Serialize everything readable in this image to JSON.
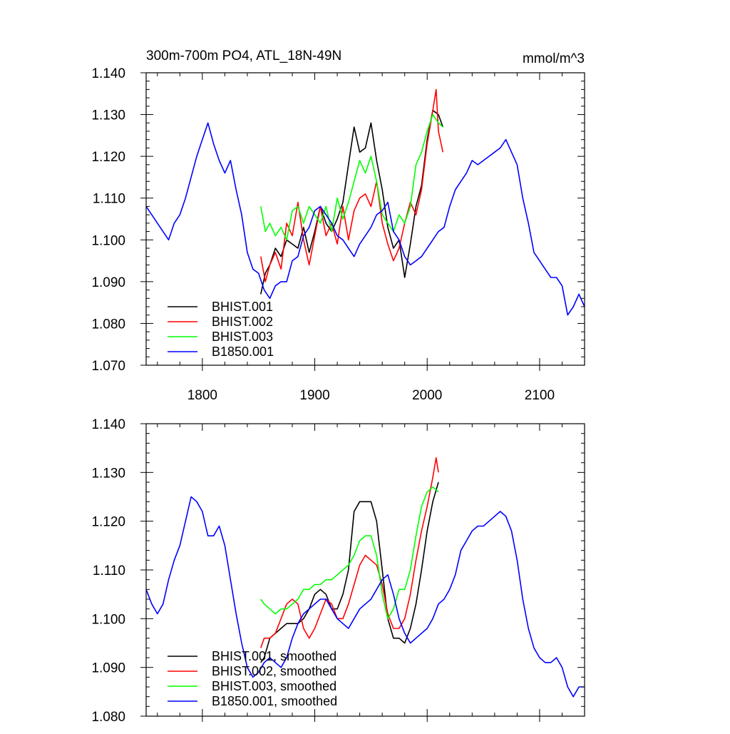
{
  "figure": {
    "title_left": "300m-700m PO4, ATL_18N-49N",
    "title_right": "mmol/m^3"
  },
  "colors": {
    "BHIST.001": "#000000",
    "BHIST.002": "#ff0000",
    "BHIST.003": "#00ff00",
    "B1850.001": "#0000ff"
  },
  "chart_data": [
    {
      "type": "line",
      "title": "300m-700m PO4, ATL_18N-49N",
      "units": "mmol/m^3",
      "xlim": [
        1750,
        2140
      ],
      "ylim": [
        1.07,
        1.14
      ],
      "x_ticks": [
        1800,
        1900,
        2000,
        2100
      ],
      "x_tick_labels": [
        "1800",
        "1900",
        "2000",
        "2100"
      ],
      "y_ticks": [
        1.07,
        1.08,
        1.09,
        1.1,
        1.11,
        1.12,
        1.13,
        1.14
      ],
      "y_tick_labels": [
        "1.070",
        "1.080",
        "1.090",
        "1.100",
        "1.110",
        "1.120",
        "1.130",
        "1.140"
      ],
      "legend_position": "bottom-left",
      "series": [
        {
          "name": "BHIST.001",
          "color": "#000000",
          "x": [
            1852,
            1856,
            1860,
            1865,
            1870,
            1875,
            1880,
            1885,
            1890,
            1895,
            1900,
            1905,
            1910,
            1915,
            1920,
            1925,
            1930,
            1935,
            1940,
            1945,
            1950,
            1955,
            1960,
            1965,
            1970,
            1975,
            1980,
            1985,
            1990,
            1995,
            2000,
            2005,
            2010,
            2014
          ],
          "y": [
            1.087,
            1.092,
            1.094,
            1.098,
            1.096,
            1.1,
            1.099,
            1.098,
            1.103,
            1.097,
            1.102,
            1.108,
            1.104,
            1.102,
            1.105,
            1.109,
            1.118,
            1.127,
            1.121,
            1.122,
            1.128,
            1.119,
            1.112,
            1.103,
            1.098,
            1.1,
            1.091,
            1.099,
            1.108,
            1.113,
            1.124,
            1.131,
            1.13,
            1.127
          ]
        },
        {
          "name": "BHIST.002",
          "color": "#ff0000",
          "x": [
            1852,
            1856,
            1860,
            1865,
            1870,
            1875,
            1880,
            1885,
            1890,
            1895,
            1900,
            1905,
            1910,
            1915,
            1920,
            1925,
            1930,
            1935,
            1940,
            1945,
            1950,
            1955,
            1960,
            1965,
            1970,
            1975,
            1980,
            1985,
            1990,
            1995,
            2000,
            2005,
            2008,
            2010,
            2014
          ],
          "y": [
            1.096,
            1.09,
            1.094,
            1.097,
            1.093,
            1.104,
            1.101,
            1.109,
            1.1,
            1.094,
            1.101,
            1.108,
            1.101,
            1.104,
            1.099,
            1.108,
            1.1,
            1.107,
            1.11,
            1.111,
            1.108,
            1.114,
            1.104,
            1.099,
            1.095,
            1.098,
            1.104,
            1.109,
            1.106,
            1.112,
            1.123,
            1.131,
            1.136,
            1.126,
            1.121
          ]
        },
        {
          "name": "BHIST.003",
          "color": "#00ff00",
          "x": [
            1852,
            1856,
            1860,
            1865,
            1870,
            1875,
            1880,
            1885,
            1890,
            1895,
            1900,
            1905,
            1910,
            1915,
            1920,
            1925,
            1930,
            1935,
            1940,
            1945,
            1950,
            1955,
            1960,
            1965,
            1970,
            1975,
            1980,
            1985,
            1990,
            1995,
            2000,
            2005,
            2010,
            2014
          ],
          "y": [
            1.108,
            1.102,
            1.104,
            1.101,
            1.103,
            1.1,
            1.107,
            1.108,
            1.104,
            1.108,
            1.106,
            1.104,
            1.108,
            1.102,
            1.11,
            1.105,
            1.109,
            1.114,
            1.119,
            1.116,
            1.12,
            1.114,
            1.106,
            1.104,
            1.102,
            1.106,
            1.104,
            1.108,
            1.118,
            1.121,
            1.126,
            1.13,
            1.128,
            1.127
          ]
        },
        {
          "name": "B1850.001",
          "color": "#0000ff",
          "x": [
            1750,
            1755,
            1760,
            1765,
            1770,
            1775,
            1780,
            1785,
            1790,
            1795,
            1800,
            1805,
            1810,
            1815,
            1820,
            1825,
            1830,
            1835,
            1840,
            1845,
            1850,
            1855,
            1860,
            1865,
            1870,
            1875,
            1880,
            1885,
            1890,
            1895,
            1900,
            1905,
            1910,
            1915,
            1920,
            1925,
            1930,
            1935,
            1940,
            1945,
            1950,
            1955,
            1960,
            1965,
            1970,
            1975,
            1980,
            1985,
            1990,
            1995,
            2000,
            2005,
            2010,
            2015,
            2020,
            2025,
            2030,
            2035,
            2040,
            2045,
            2050,
            2055,
            2060,
            2065,
            2070,
            2075,
            2080,
            2085,
            2090,
            2095,
            2100,
            2105,
            2110,
            2115,
            2120,
            2125,
            2130,
            2135,
            2140
          ],
          "y": [
            1.108,
            1.106,
            1.104,
            1.102,
            1.1,
            1.104,
            1.106,
            1.11,
            1.115,
            1.12,
            1.124,
            1.128,
            1.123,
            1.119,
            1.116,
            1.119,
            1.112,
            1.106,
            1.097,
            1.093,
            1.092,
            1.088,
            1.086,
            1.089,
            1.09,
            1.09,
            1.095,
            1.096,
            1.101,
            1.103,
            1.107,
            1.108,
            1.106,
            1.104,
            1.101,
            1.1,
            1.098,
            1.096,
            1.099,
            1.101,
            1.103,
            1.106,
            1.107,
            1.109,
            1.102,
            1.1,
            1.096,
            1.094,
            1.095,
            1.096,
            1.098,
            1.1,
            1.102,
            1.103,
            1.108,
            1.112,
            1.114,
            1.116,
            1.119,
            1.118,
            1.119,
            1.12,
            1.121,
            1.122,
            1.124,
            1.121,
            1.118,
            1.11,
            1.104,
            1.097,
            1.095,
            1.093,
            1.091,
            1.091,
            1.089,
            1.082,
            1.084,
            1.087,
            1.084
          ]
        }
      ]
    },
    {
      "type": "line",
      "xlim": [
        1750,
        2140
      ],
      "ylim": [
        1.08,
        1.14
      ],
      "x_ticks": [
        1800,
        1900,
        2000,
        2100
      ],
      "y_ticks": [
        1.08,
        1.09,
        1.1,
        1.11,
        1.12,
        1.13,
        1.14
      ],
      "y_tick_labels": [
        "1.080",
        "1.090",
        "1.100",
        "1.110",
        "1.120",
        "1.130",
        "1.140"
      ],
      "legend_position": "bottom-left",
      "series": [
        {
          "name": "BHIST.001, smoothed",
          "color": "#000000",
          "x": [
            1852,
            1855,
            1860,
            1865,
            1870,
            1875,
            1880,
            1885,
            1890,
            1895,
            1900,
            1905,
            1910,
            1915,
            1920,
            1925,
            1930,
            1935,
            1940,
            1945,
            1950,
            1955,
            1960,
            1965,
            1970,
            1975,
            1980,
            1985,
            1990,
            1995,
            2000,
            2005,
            2010
          ],
          "y": [
            1.091,
            1.092,
            1.096,
            1.097,
            1.098,
            1.099,
            1.099,
            1.099,
            1.1,
            1.102,
            1.105,
            1.106,
            1.105,
            1.102,
            1.102,
            1.105,
            1.11,
            1.122,
            1.124,
            1.124,
            1.124,
            1.12,
            1.11,
            1.1,
            1.096,
            1.096,
            1.095,
            1.098,
            1.103,
            1.11,
            1.118,
            1.124,
            1.128
          ]
        },
        {
          "name": "BHIST.002, smoothed",
          "color": "#ff0000",
          "x": [
            1852,
            1855,
            1860,
            1865,
            1870,
            1875,
            1880,
            1885,
            1890,
            1895,
            1900,
            1905,
            1910,
            1915,
            1920,
            1925,
            1930,
            1935,
            1940,
            1945,
            1950,
            1955,
            1960,
            1965,
            1970,
            1975,
            1980,
            1985,
            1990,
            1995,
            2000,
            2005,
            2008,
            2010
          ],
          "y": [
            1.094,
            1.096,
            1.096,
            1.097,
            1.1,
            1.103,
            1.104,
            1.103,
            1.098,
            1.096,
            1.098,
            1.101,
            1.104,
            1.103,
            1.1,
            1.1,
            1.103,
            1.107,
            1.111,
            1.113,
            1.112,
            1.111,
            1.107,
            1.101,
            1.098,
            1.098,
            1.1,
            1.105,
            1.112,
            1.118,
            1.123,
            1.129,
            1.133,
            1.13
          ]
        },
        {
          "name": "BHIST.003, smoothed",
          "color": "#00ff00",
          "x": [
            1852,
            1855,
            1860,
            1865,
            1870,
            1875,
            1880,
            1885,
            1890,
            1895,
            1900,
            1905,
            1910,
            1915,
            1920,
            1925,
            1930,
            1935,
            1940,
            1945,
            1950,
            1955,
            1960,
            1965,
            1970,
            1975,
            1980,
            1985,
            1990,
            1995,
            2000,
            2005,
            2010
          ],
          "y": [
            1.104,
            1.103,
            1.102,
            1.101,
            1.102,
            1.102,
            1.103,
            1.104,
            1.106,
            1.106,
            1.107,
            1.107,
            1.108,
            1.108,
            1.109,
            1.11,
            1.111,
            1.113,
            1.116,
            1.117,
            1.117,
            1.113,
            1.105,
            1.1,
            1.102,
            1.106,
            1.106,
            1.11,
            1.117,
            1.123,
            1.126,
            1.127,
            1.126
          ]
        },
        {
          "name": "B1850.001, smoothed",
          "color": "#0000ff",
          "x": [
            1750,
            1755,
            1760,
            1765,
            1770,
            1775,
            1780,
            1785,
            1790,
            1795,
            1800,
            1805,
            1810,
            1815,
            1820,
            1825,
            1830,
            1835,
            1840,
            1845,
            1850,
            1855,
            1860,
            1865,
            1870,
            1875,
            1880,
            1885,
            1890,
            1895,
            1900,
            1905,
            1910,
            1915,
            1920,
            1925,
            1930,
            1935,
            1940,
            1945,
            1950,
            1955,
            1960,
            1965,
            1970,
            1975,
            1980,
            1985,
            1990,
            1995,
            2000,
            2005,
            2010,
            2015,
            2020,
            2025,
            2030,
            2035,
            2040,
            2045,
            2050,
            2055,
            2060,
            2065,
            2070,
            2075,
            2080,
            2085,
            2090,
            2095,
            2100,
            2105,
            2110,
            2115,
            2120,
            2125,
            2130,
            2135,
            2140
          ],
          "y": [
            1.106,
            1.103,
            1.101,
            1.103,
            1.108,
            1.112,
            1.115,
            1.12,
            1.125,
            1.124,
            1.122,
            1.117,
            1.117,
            1.119,
            1.115,
            1.108,
            1.101,
            1.095,
            1.09,
            1.088,
            1.089,
            1.091,
            1.092,
            1.091,
            1.09,
            1.092,
            1.096,
            1.099,
            1.101,
            1.102,
            1.103,
            1.104,
            1.104,
            1.102,
            1.1,
            1.099,
            1.098,
            1.1,
            1.102,
            1.103,
            1.104,
            1.106,
            1.108,
            1.109,
            1.105,
            1.1,
            1.097,
            1.095,
            1.096,
            1.097,
            1.098,
            1.1,
            1.103,
            1.104,
            1.106,
            1.109,
            1.114,
            1.116,
            1.118,
            1.119,
            1.119,
            1.12,
            1.121,
            1.122,
            1.121,
            1.118,
            1.112,
            1.104,
            1.098,
            1.094,
            1.092,
            1.091,
            1.091,
            1.092,
            1.09,
            1.086,
            1.084,
            1.086,
            1.086
          ]
        }
      ]
    }
  ]
}
